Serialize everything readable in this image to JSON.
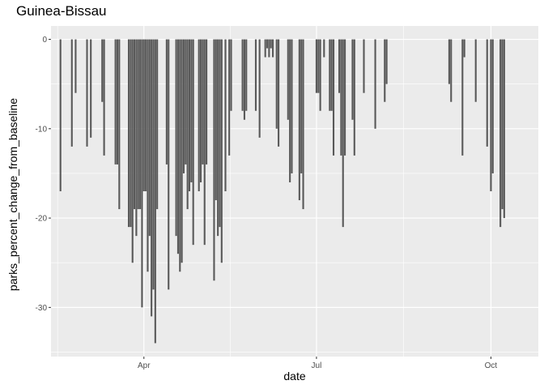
{
  "chart_data": {
    "type": "bar",
    "title": "Guinea-Bissau",
    "xlabel": "date",
    "ylabel": "parks_percent_change_from_baseline",
    "ylim": [
      -35.5,
      1.5
    ],
    "xlim": [
      "2020-02-12",
      "2020-10-26"
    ],
    "y_ticks": [
      0,
      -10,
      -20,
      -30
    ],
    "y_tick_labels": [
      "0",
      "-10",
      "-20",
      "-30"
    ],
    "x_ticks": [
      "2020-04-01",
      "2020-07-01",
      "2020-10-01"
    ],
    "x_tick_labels": [
      "Apr",
      "Jul",
      "Oct"
    ],
    "grid": true,
    "colors": {
      "bar": "#595959",
      "panel": "#ebebeb",
      "grid": "#ffffff"
    },
    "points": [
      [
        "2020-02-17",
        -17
      ],
      [
        "2020-02-23",
        -12
      ],
      [
        "2020-02-25",
        -6
      ],
      [
        "2020-03-02",
        -12
      ],
      [
        "2020-03-04",
        -11
      ],
      [
        "2020-03-10",
        -7
      ],
      [
        "2020-03-11",
        -13
      ],
      [
        "2020-03-17",
        -14
      ],
      [
        "2020-03-18",
        -14
      ],
      [
        "2020-03-19",
        -19
      ],
      [
        "2020-03-24",
        -21
      ],
      [
        "2020-03-25",
        -21
      ],
      [
        "2020-03-26",
        -25
      ],
      [
        "2020-03-27",
        -19
      ],
      [
        "2020-03-28",
        -22
      ],
      [
        "2020-03-29",
        -19
      ],
      [
        "2020-03-30",
        -19
      ],
      [
        "2020-03-31",
        -30
      ],
      [
        "2020-04-01",
        -17
      ],
      [
        "2020-04-02",
        -17
      ],
      [
        "2020-04-03",
        -26
      ],
      [
        "2020-04-04",
        -22
      ],
      [
        "2020-04-05",
        -31
      ],
      [
        "2020-04-06",
        -28
      ],
      [
        "2020-04-07",
        -34
      ],
      [
        "2020-04-08",
        -19
      ],
      [
        "2020-04-13",
        -14
      ],
      [
        "2020-04-14",
        -28
      ],
      [
        "2020-04-18",
        -22
      ],
      [
        "2020-04-19",
        -24
      ],
      [
        "2020-04-20",
        -26
      ],
      [
        "2020-04-21",
        -25
      ],
      [
        "2020-04-22",
        -15
      ],
      [
        "2020-04-23",
        -14
      ],
      [
        "2020-04-24",
        -19
      ],
      [
        "2020-04-25",
        -17
      ],
      [
        "2020-04-26",
        -16
      ],
      [
        "2020-04-27",
        -23
      ],
      [
        "2020-04-30",
        -17
      ],
      [
        "2020-05-01",
        -16
      ],
      [
        "2020-05-02",
        -14
      ],
      [
        "2020-05-03",
        -23
      ],
      [
        "2020-05-04",
        -14
      ],
      [
        "2020-05-08",
        -27
      ],
      [
        "2020-05-09",
        -18
      ],
      [
        "2020-05-10",
        -22
      ],
      [
        "2020-05-11",
        -21
      ],
      [
        "2020-05-12",
        -25
      ],
      [
        "2020-05-14",
        -17
      ],
      [
        "2020-05-16",
        -13
      ],
      [
        "2020-05-17",
        -8
      ],
      [
        "2020-05-23",
        -8
      ],
      [
        "2020-05-24",
        -9
      ],
      [
        "2020-05-25",
        -8
      ],
      [
        "2020-05-30",
        -8
      ],
      [
        "2020-06-01",
        -11
      ],
      [
        "2020-06-04",
        -2
      ],
      [
        "2020-06-05",
        -1
      ],
      [
        "2020-06-06",
        -2
      ],
      [
        "2020-06-07",
        -1
      ],
      [
        "2020-06-08",
        -2
      ],
      [
        "2020-06-10",
        -10
      ],
      [
        "2020-06-11",
        -12
      ],
      [
        "2020-06-16",
        -9
      ],
      [
        "2020-06-17",
        -16
      ],
      [
        "2020-06-18",
        -15
      ],
      [
        "2020-06-22",
        -18
      ],
      [
        "2020-06-23",
        -15
      ],
      [
        "2020-06-24",
        -19
      ],
      [
        "2020-07-01",
        -6
      ],
      [
        "2020-07-02",
        -6
      ],
      [
        "2020-07-03",
        -8
      ],
      [
        "2020-07-05",
        -2
      ],
      [
        "2020-07-08",
        -8
      ],
      [
        "2020-07-09",
        -8
      ],
      [
        "2020-07-10",
        -13
      ],
      [
        "2020-07-13",
        -6
      ],
      [
        "2020-07-14",
        -13
      ],
      [
        "2020-07-15",
        -21
      ],
      [
        "2020-07-16",
        -13
      ],
      [
        "2020-07-20",
        -9
      ],
      [
        "2020-07-21",
        -13
      ],
      [
        "2020-07-26",
        -6
      ],
      [
        "2020-08-01",
        -10
      ],
      [
        "2020-08-06",
        -7
      ],
      [
        "2020-08-07",
        -5
      ],
      [
        "2020-09-09",
        -5
      ],
      [
        "2020-09-10",
        -7
      ],
      [
        "2020-09-16",
        -13
      ],
      [
        "2020-09-17",
        -2
      ],
      [
        "2020-09-23",
        -7
      ],
      [
        "2020-09-29",
        -12
      ],
      [
        "2020-10-01",
        -17
      ],
      [
        "2020-10-02",
        -15
      ],
      [
        "2020-10-06",
        -21
      ],
      [
        "2020-10-07",
        -19
      ],
      [
        "2020-10-08",
        -20
      ]
    ]
  }
}
